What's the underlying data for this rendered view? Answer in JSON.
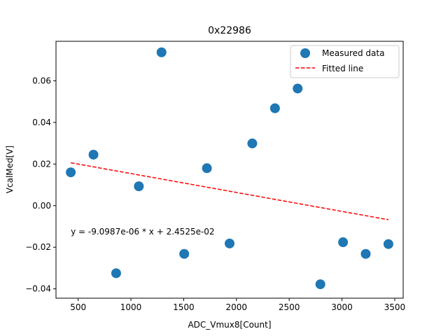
{
  "chart_data": {
    "type": "scatter",
    "title": "0x22986",
    "xlabel": "ADC_Vmux8[Count]",
    "ylabel": "VcalMed[V]",
    "xlim": [
      290,
      3580
    ],
    "ylim": [
      -0.0445,
      0.079
    ],
    "xticks": [
      500,
      1000,
      1500,
      2000,
      2500,
      3000,
      3500
    ],
    "xtick_labels": [
      "500",
      "1000",
      "1500",
      "2000",
      "2500",
      "3000",
      "3500"
    ],
    "yticks": [
      -0.04,
      -0.02,
      0.0,
      0.02,
      0.04,
      0.06
    ],
    "ytick_labels": [
      "−0.04",
      "−0.02",
      "0.00",
      "0.02",
      "0.04",
      "0.06"
    ],
    "grid": false,
    "legend_location": "top-right",
    "series": [
      {
        "name": "Measured data",
        "kind": "points",
        "color": "#1f77b4",
        "x": [
          430,
          645,
          860,
          1075,
          1290,
          1505,
          1720,
          1935,
          2150,
          2365,
          2580,
          2795,
          3010,
          3225,
          3440
        ],
        "y": [
          0.016,
          0.0245,
          -0.0325,
          0.0093,
          0.0737,
          -0.0232,
          0.018,
          -0.0182,
          0.0299,
          0.0468,
          0.0563,
          -0.0378,
          -0.0176,
          -0.0232,
          -0.0185
        ]
      },
      {
        "name": "Fitted line",
        "kind": "line",
        "style": "dashed",
        "color": "#ff0000",
        "x": [
          430,
          3440
        ],
        "y": [
          0.0206128,
          -0.0067743
        ]
      }
    ],
    "annotation": {
      "text": "y = -9.0987e-06 * x + 2.4525e-02",
      "x": 430,
      "y": -0.0125
    }
  }
}
